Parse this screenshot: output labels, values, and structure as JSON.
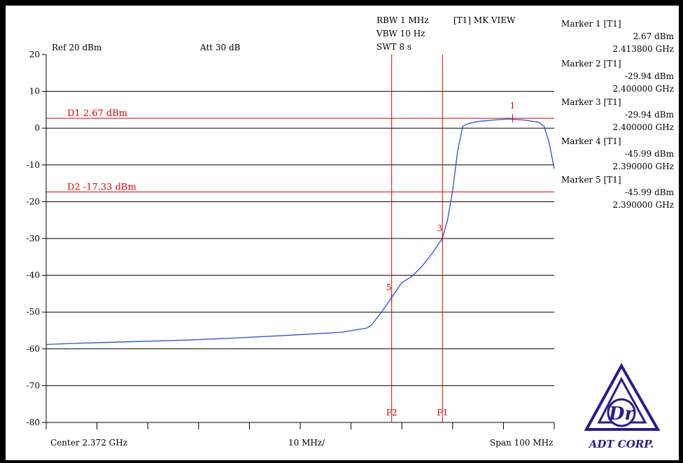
{
  "header": {
    "ref": "Ref 20 dBm",
    "att": "Att 30 dB",
    "rbw": "RBW 1 MHz",
    "vbw": "VBW 10 Hz",
    "swt": "SWT 8 s",
    "mode": "[T1] MK VIEW"
  },
  "footer": {
    "center": "Center 2.372 GHz",
    "div": "10 MHz/",
    "span": "Span 100 MHz"
  },
  "markers": [
    {
      "title": "Marker 1 [T1]",
      "level": "2.67 dBm",
      "freq": "2.413800 GHz"
    },
    {
      "title": "Marker 2 [T1]",
      "level": "-29.94 dBm",
      "freq": "2.400000 GHz"
    },
    {
      "title": "Marker 3 [T1]",
      "level": "-29.94 dBm",
      "freq": "2.400000 GHz"
    },
    {
      "title": "Marker 4 [T1]",
      "level": "-45.99 dBm",
      "freq": "2.390000 GHz"
    },
    {
      "title": "Marker 5 [T1]",
      "level": "-45.99 dBm",
      "freq": "2.390000 GHz"
    }
  ],
  "logo": {
    "text": "ADT CORP."
  },
  "colors": {
    "trace": "#2b4fd6",
    "display": "#e00000",
    "logo": "#2c1a8c"
  },
  "chart_data": {
    "type": "line",
    "xlim": [
      2.322,
      2.422
    ],
    "ylim": [
      -80,
      20
    ],
    "ytick_labels": [
      "20",
      "10",
      "0",
      "-10",
      "-20",
      "-30",
      "-40",
      "-50",
      "-60",
      "-70",
      "-80"
    ],
    "grid": true,
    "display_lines": [
      {
        "label": "D1 2.67 dBm",
        "y": 2.67
      },
      {
        "label": "D2 -17.33 dBm",
        "y": -17.33
      }
    ],
    "freq_lines": [
      {
        "label": "F2",
        "x": 2.39
      },
      {
        "label": "F1",
        "x": 2.4
      }
    ],
    "marker_points": [
      {
        "label": "1",
        "x": 2.4138,
        "y": 2.67
      },
      {
        "label": "3",
        "x": 2.4,
        "y": -29.94
      },
      {
        "label": "5",
        "x": 2.39,
        "y": -45.99
      }
    ],
    "series": [
      {
        "x": [
          2.322,
          2.33,
          2.34,
          2.35,
          2.36,
          2.37,
          2.38,
          2.385,
          2.386,
          2.388,
          2.39,
          2.392,
          2.394,
          2.396,
          2.398,
          2.4,
          2.401,
          2.402,
          2.403,
          2.404,
          2.405,
          2.407,
          2.41,
          2.413,
          2.416,
          2.419,
          2.42,
          2.421,
          2.422
        ],
        "y": [
          -58.8,
          -58.4,
          -58.0,
          -57.6,
          -57.0,
          -56.3,
          -55.5,
          -54.4,
          -53.6,
          -50.0,
          -46.0,
          -42.0,
          -40.3,
          -37.5,
          -34.0,
          -29.9,
          -25.0,
          -17.0,
          -6.0,
          0.5,
          1.2,
          1.8,
          2.2,
          2.5,
          2.2,
          1.6,
          0.5,
          -4.0,
          -11.0
        ]
      }
    ]
  }
}
